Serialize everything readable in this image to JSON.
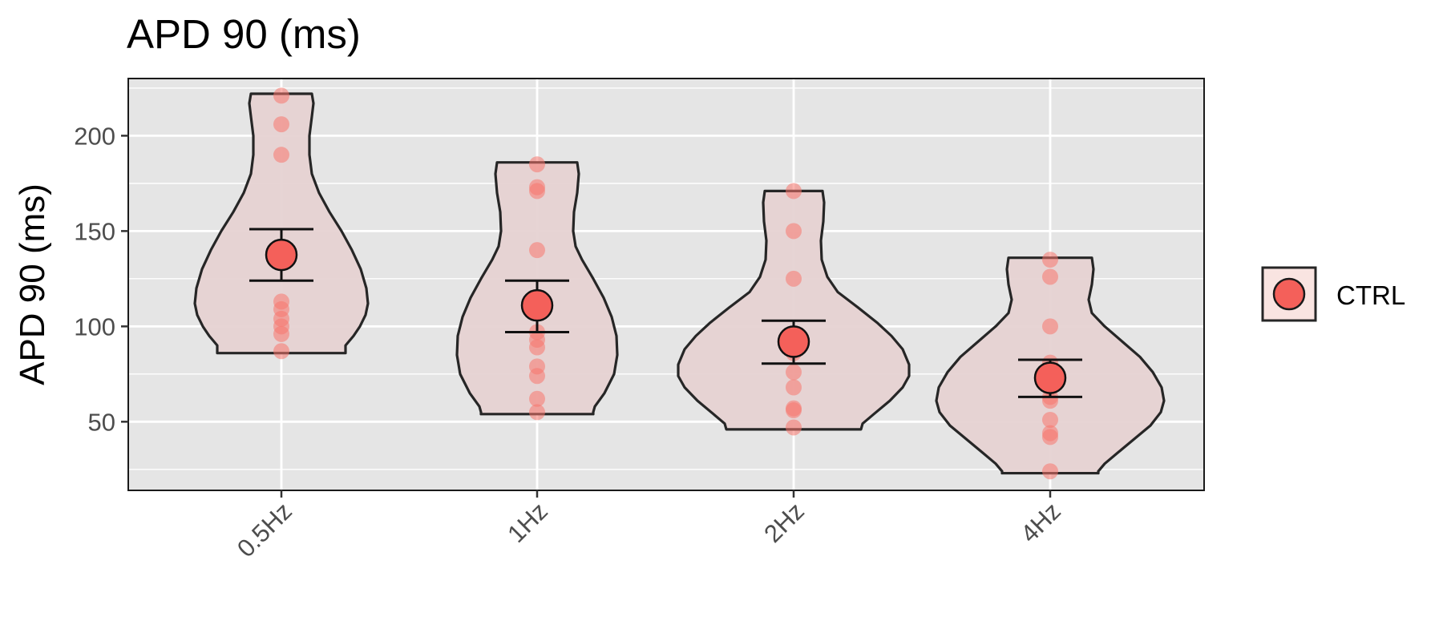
{
  "chart_data": {
    "type": "violin",
    "title": "APD 90 (ms)",
    "xlabel": "",
    "ylabel": "APD 90 (ms)",
    "categories": [
      "0.5Hz",
      "1Hz",
      "2Hz",
      "4Hz"
    ],
    "yticks": [
      50,
      100,
      150,
      200
    ],
    "ylim": [
      14,
      230
    ],
    "grid": true,
    "legend_position": "right",
    "series": [
      {
        "name": "CTRL",
        "color": "#F8766D",
        "groups": [
          {
            "category": "0.5Hz",
            "points": [
              221,
              206,
              190,
              113,
              109,
              104,
              100,
              96,
              87
            ],
            "mean": 137.5,
            "error": [
              124,
              151
            ],
            "range": [
              86,
              222
            ]
          },
          {
            "category": "1Hz",
            "points": [
              185,
              173,
              171,
              140,
              97,
              93,
              89,
              79,
              74,
              62,
              55
            ],
            "mean": 111,
            "error": [
              97,
              124
            ],
            "range": [
              54,
              186
            ]
          },
          {
            "category": "2Hz",
            "points": [
              171,
              150,
              125,
              86,
              76,
              68,
              57,
              56,
              47
            ],
            "mean": 92,
            "error": [
              80.5,
              103
            ],
            "range": [
              46,
              171
            ]
          },
          {
            "category": "4Hz",
            "points": [
              135,
              126,
              100,
              81,
              75,
              63,
              61,
              51,
              44,
              42,
              24
            ],
            "mean": 73,
            "error": [
              63,
              82.5
            ],
            "range": [
              23,
              136
            ]
          }
        ]
      }
    ]
  },
  "colors": {
    "panel_background": "#E5E5E5",
    "gridline": "#FFFFFF",
    "violin_fill": "#E6D2D2",
    "violin_outline": "#262626",
    "point": "#F8766D",
    "mean_point": "#F4605A"
  }
}
